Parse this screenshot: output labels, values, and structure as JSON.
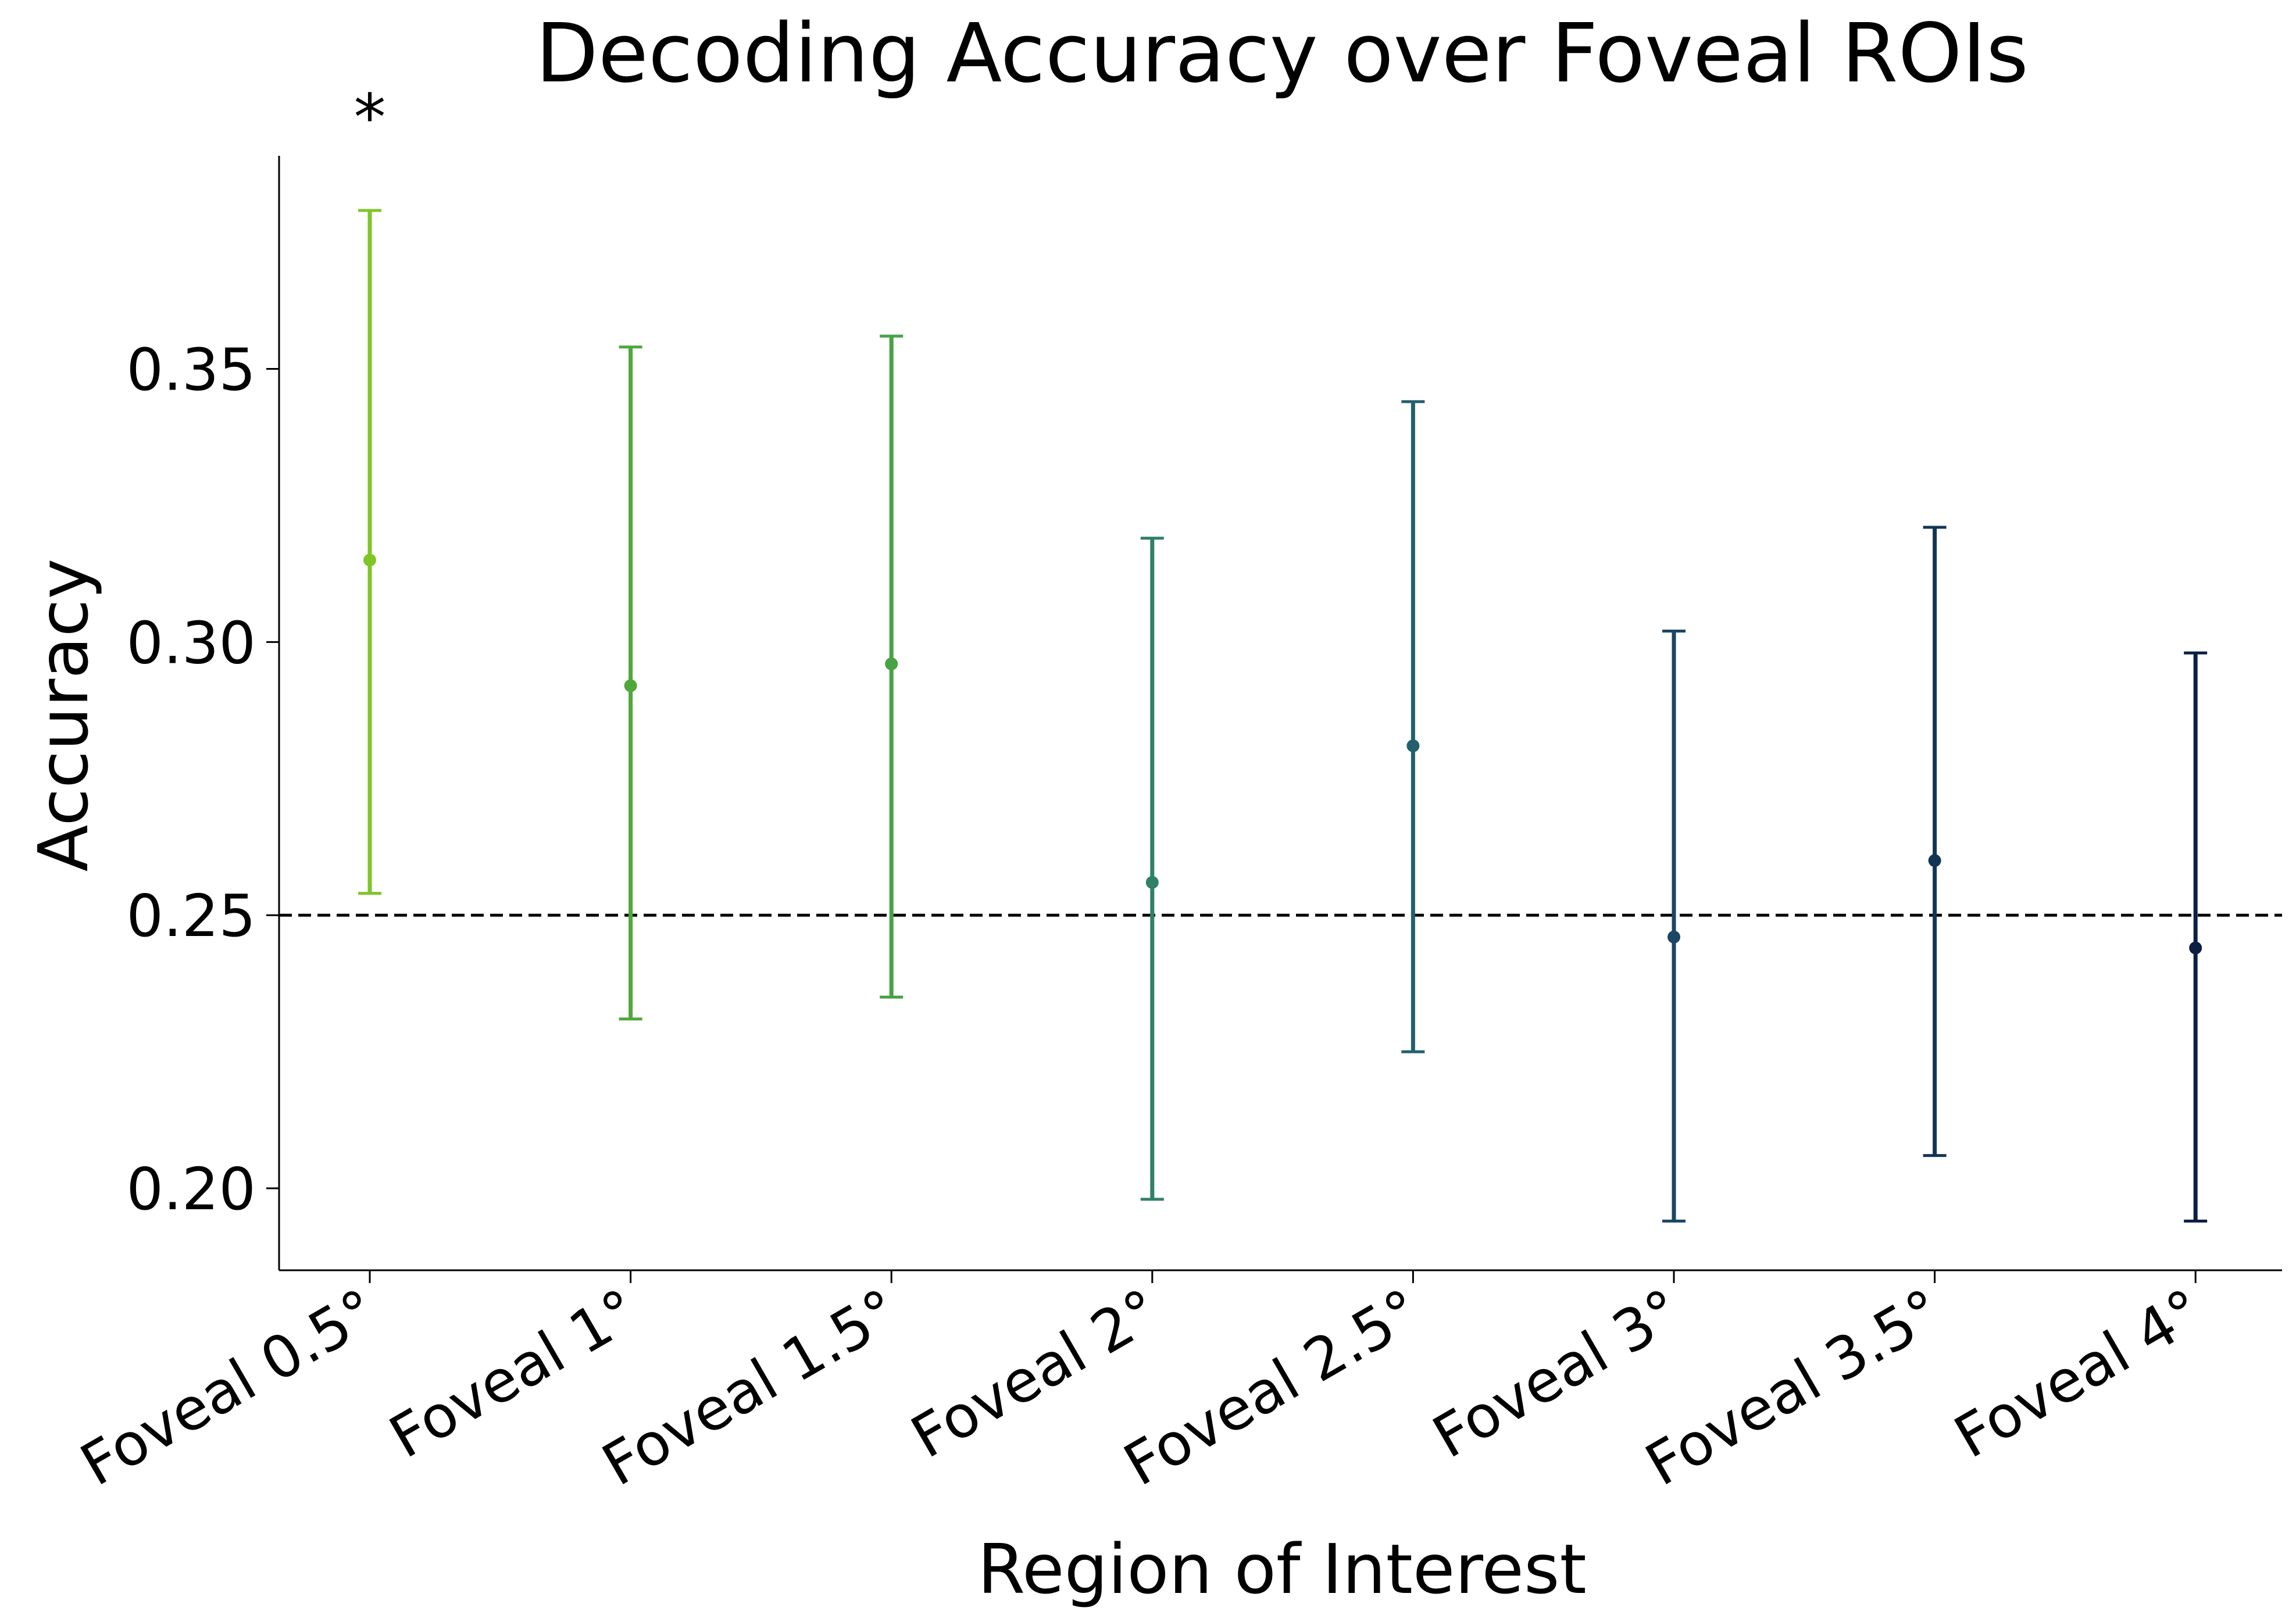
{
  "chart_data": {
    "type": "errorbar",
    "title": "Decoding Accuracy over Foveal ROIs",
    "xlabel": "Region of Interest",
    "ylabel": "Accuracy",
    "ylim": [
      0.185,
      0.389
    ],
    "yticks": [
      0.2,
      0.25,
      0.3,
      0.35
    ],
    "ytick_labels": [
      "0.20",
      "0.25",
      "0.30",
      "0.35"
    ],
    "chance_level": 0.25,
    "grid": false,
    "categories": [
      "Foveal 0.5°",
      "Foveal 1°",
      "Foveal 1.5°",
      "Foveal 2°",
      "Foveal 2.5°",
      "Foveal 3°",
      "Foveal 3.5°",
      "Foveal 4°"
    ],
    "values": [
      0.315,
      0.292,
      0.296,
      0.256,
      0.281,
      0.246,
      0.26,
      0.244
    ],
    "lower": [
      0.254,
      0.231,
      0.235,
      0.198,
      0.225,
      0.194,
      0.206,
      0.194
    ],
    "upper": [
      0.379,
      0.354,
      0.356,
      0.319,
      0.344,
      0.302,
      0.321,
      0.298
    ],
    "colors": [
      "#7ec628",
      "#4ea83a",
      "#47a244",
      "#2e8066",
      "#22606c",
      "#1b4664",
      "#133555",
      "#0b1e44"
    ],
    "annotations": [
      {
        "category_index": 0,
        "text": "*"
      }
    ]
  }
}
